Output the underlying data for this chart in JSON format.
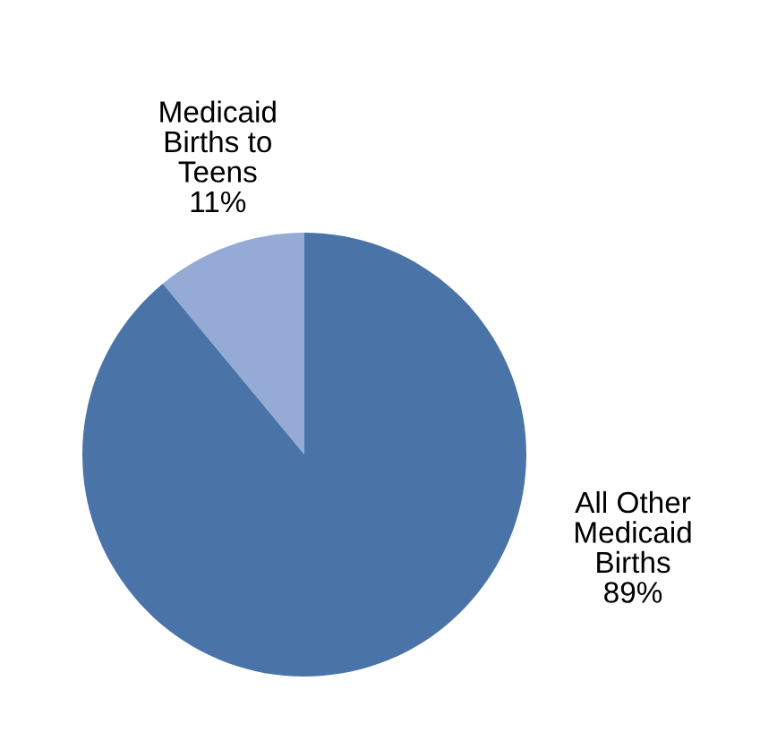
{
  "chart_data": {
    "type": "pie",
    "categories": [
      "Medicaid\nBirths to\nTeens",
      "All Other\nMedicaid\nBirths"
    ],
    "values": [
      11,
      89
    ],
    "colors": [
      "#95abd5",
      "#4a74a8"
    ],
    "value_labels": [
      "11%",
      "89%"
    ],
    "legend": false
  }
}
